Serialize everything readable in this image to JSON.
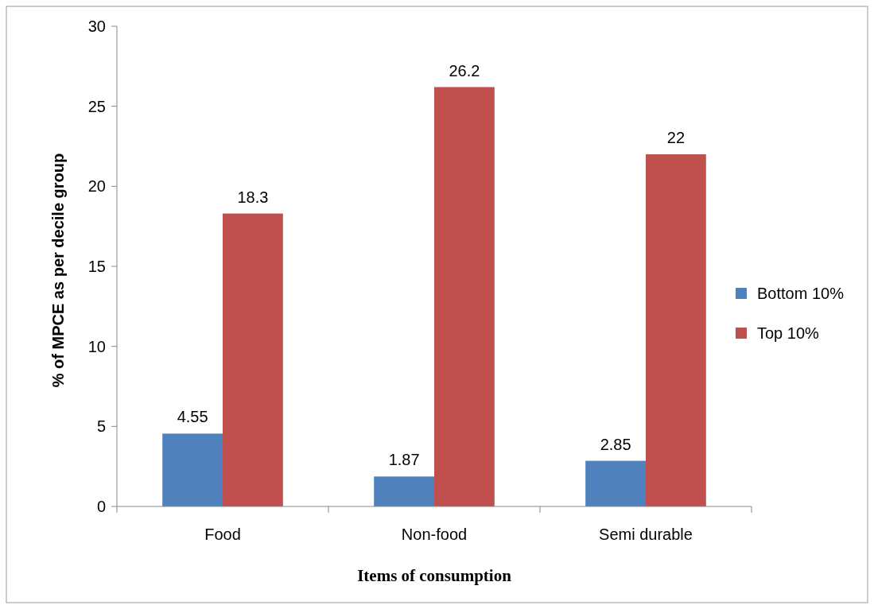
{
  "chart_data": {
    "type": "bar",
    "xlabel": "Items of consumption",
    "ylabel": "% of MPCE as per decile group",
    "categories": [
      "Food",
      "Non-food",
      "Semi durable"
    ],
    "series": [
      {
        "name": "Bottom 10%",
        "color": "#4f81bd",
        "values": [
          4.55,
          1.87,
          2.85
        ]
      },
      {
        "name": "Top 10%",
        "color": "#c0504d",
        "values": [
          18.3,
          26.2,
          22
        ]
      }
    ],
    "ylim": [
      0,
      30
    ],
    "yticks": [
      0,
      5,
      10,
      15,
      20,
      25,
      30
    ],
    "grid": false,
    "legend": "right",
    "data_labels": true
  }
}
